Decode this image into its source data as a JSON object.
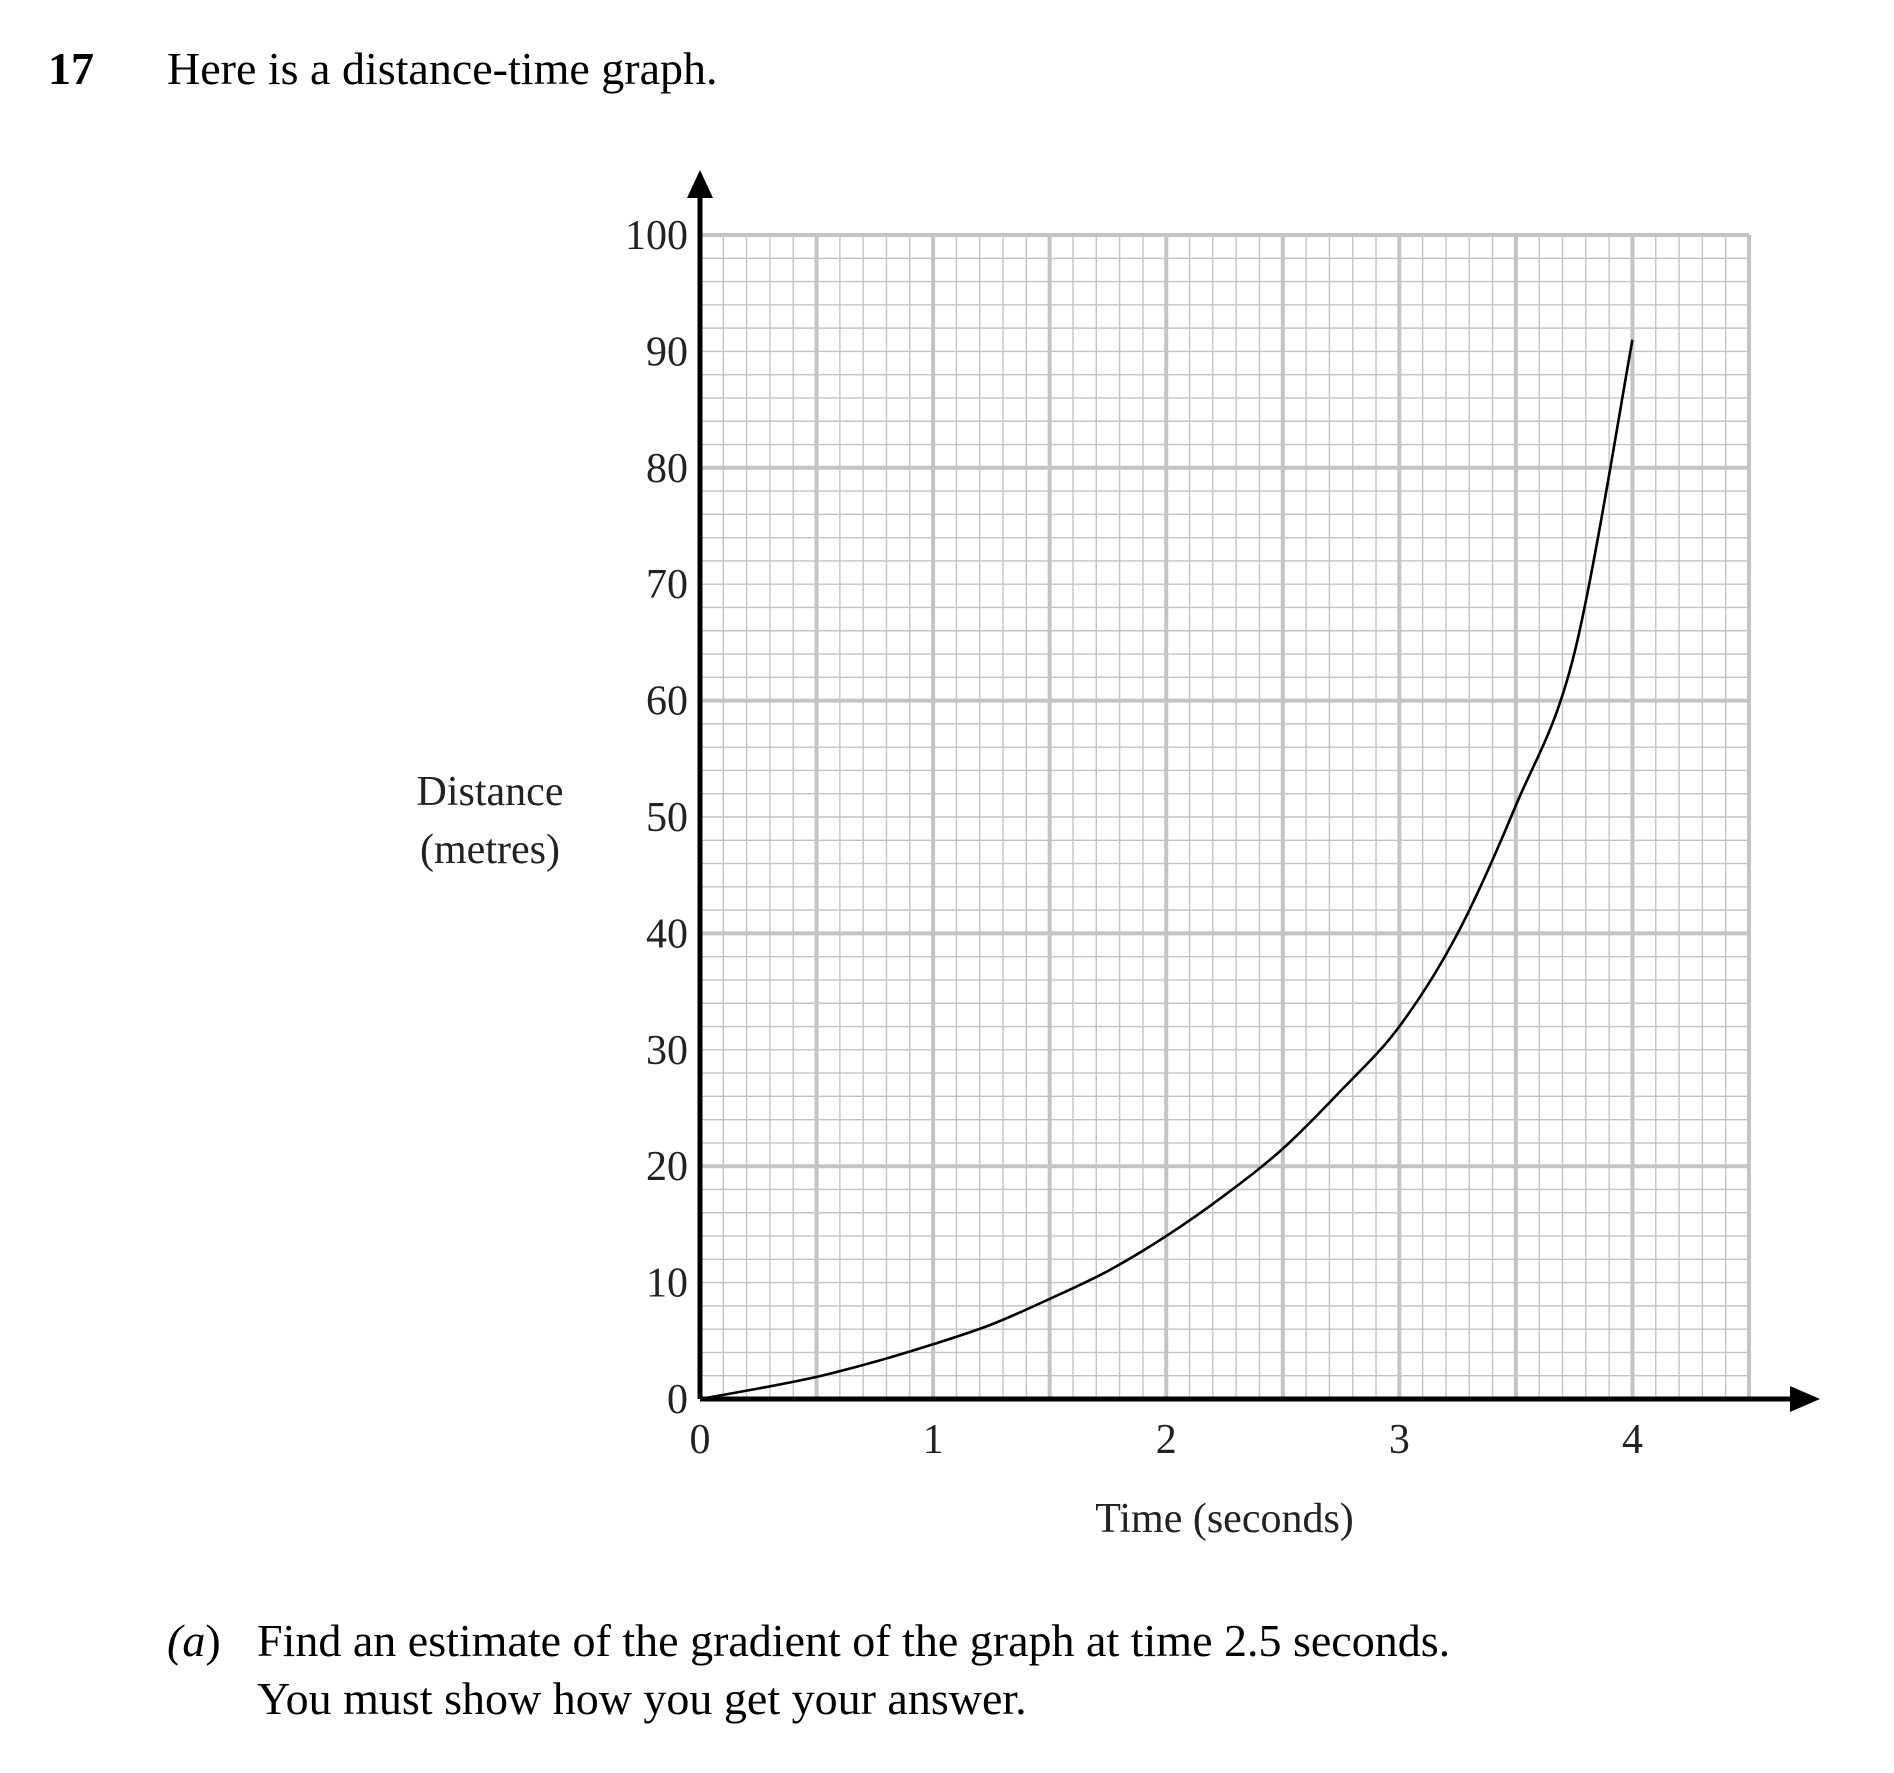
{
  "question": {
    "number": "17",
    "intro": "Here is a distance-time graph.",
    "part_a": {
      "label": "(a)",
      "line1": "Find an estimate of the gradient of the graph at time 2.5 seconds.",
      "line2": "You must show how you get your answer."
    }
  },
  "chart_data": {
    "type": "line",
    "xlabel": "Time (seconds)",
    "ylabel_lines": [
      "Distance",
      "(metres)"
    ],
    "xlim": [
      0,
      4.5
    ],
    "ylim": [
      0,
      100
    ],
    "x_ticks": [
      0,
      1,
      2,
      3,
      4
    ],
    "y_ticks": [
      0,
      10,
      20,
      30,
      40,
      50,
      60,
      70,
      80,
      90,
      100
    ],
    "grid": true,
    "series": [
      {
        "x": [
          0,
          0.25,
          0.5,
          0.75,
          1,
          1.25,
          1.5,
          1.75,
          2,
          2.25,
          2.5,
          2.75,
          3,
          3.25,
          3.5,
          3.75,
          4
        ],
        "y": [
          0,
          0.9,
          1.9,
          3.2,
          4.7,
          6.4,
          8.6,
          11,
          14,
          17.5,
          21.5,
          26.5,
          32,
          40,
          51,
          64,
          91
        ]
      }
    ],
    "colors": {
      "grid": "#c4c4c4",
      "axis": "#000000",
      "line": "#000000"
    }
  }
}
